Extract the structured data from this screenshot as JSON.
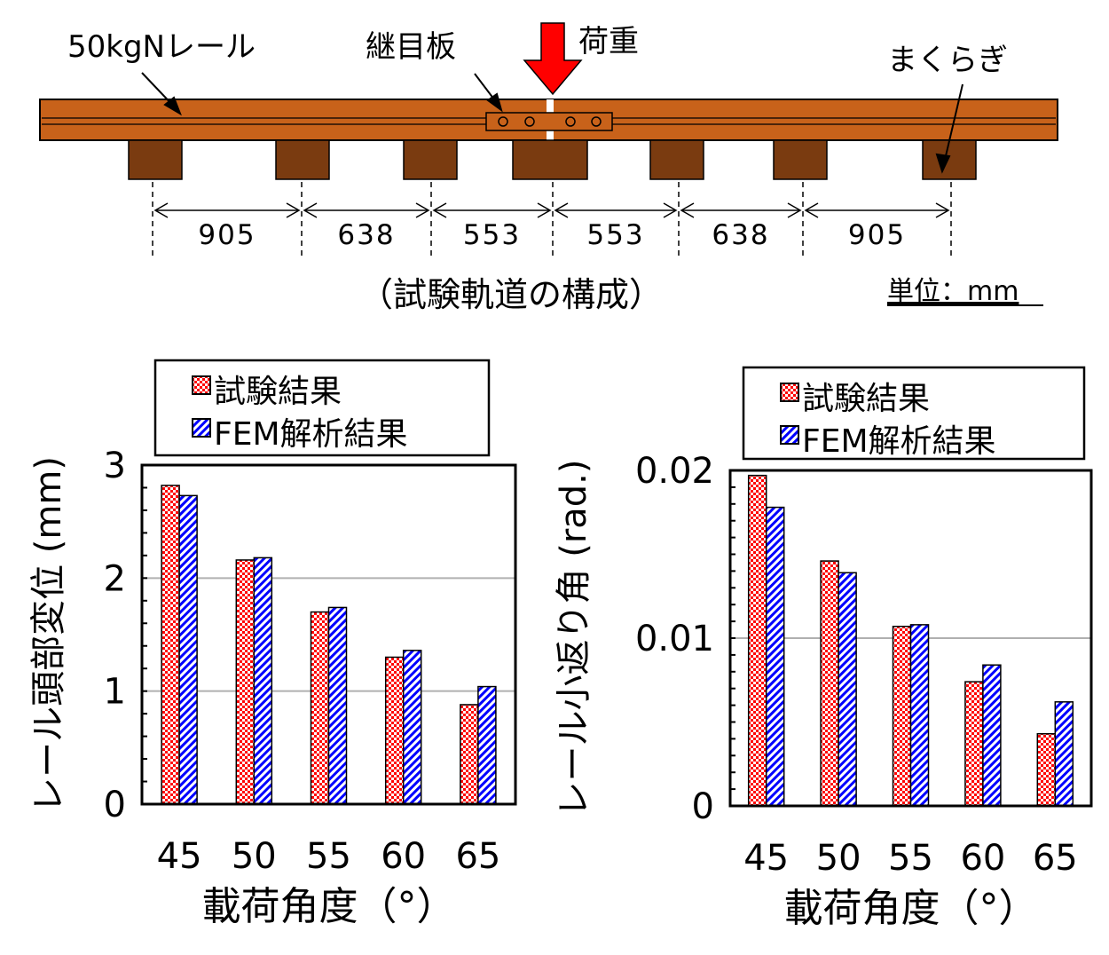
{
  "diagram": {
    "rail_label": "50kgNレール",
    "joint_label": "継目板",
    "load_label": "荷重",
    "sleeper_label": "まくらぎ",
    "spacings": [
      "905",
      "638",
      "553",
      "553",
      "638",
      "905"
    ],
    "caption": "（試験軌道の構成）",
    "unit": "単位：mm",
    "colors": {
      "rail": "#c8621a",
      "sleeper": "#7a3b10",
      "load_arrow": "#ff0000"
    }
  },
  "chart_data": [
    {
      "type": "bar",
      "title": "",
      "xlabel": "載荷角度（°）",
      "ylabel": "レール頭部変位 (mm)",
      "categories": [
        "45",
        "50",
        "55",
        "60",
        "65"
      ],
      "series": [
        {
          "name": "試験結果",
          "values": [
            2.82,
            2.16,
            1.7,
            1.3,
            0.88
          ],
          "color": "#ff0000",
          "pattern": "checker"
        },
        {
          "name": "FEM解析結果",
          "values": [
            2.73,
            2.18,
            1.74,
            1.36,
            1.04
          ],
          "color": "#0000ff",
          "pattern": "diagonal"
        }
      ],
      "ylim": [
        0,
        3
      ],
      "yticks": [
        "0",
        "1",
        "2",
        "3"
      ],
      "grid": true,
      "legend": "top"
    },
    {
      "type": "bar",
      "title": "",
      "xlabel": "載荷角度（°）",
      "ylabel": "レール小返り角 (rad.)",
      "categories": [
        "45",
        "50",
        "55",
        "60",
        "65"
      ],
      "series": [
        {
          "name": "試験結果",
          "values": [
            0.0197,
            0.0146,
            0.0107,
            0.0074,
            0.0043
          ],
          "color": "#ff0000",
          "pattern": "checker"
        },
        {
          "name": "FEM解析結果",
          "values": [
            0.0178,
            0.0139,
            0.0108,
            0.0084,
            0.0062
          ],
          "color": "#0000ff",
          "pattern": "diagonal"
        }
      ],
      "ylim": [
        0,
        0.02
      ],
      "yticks": [
        "0",
        "0.01",
        "0.02"
      ],
      "grid": true,
      "legend": "top"
    }
  ]
}
